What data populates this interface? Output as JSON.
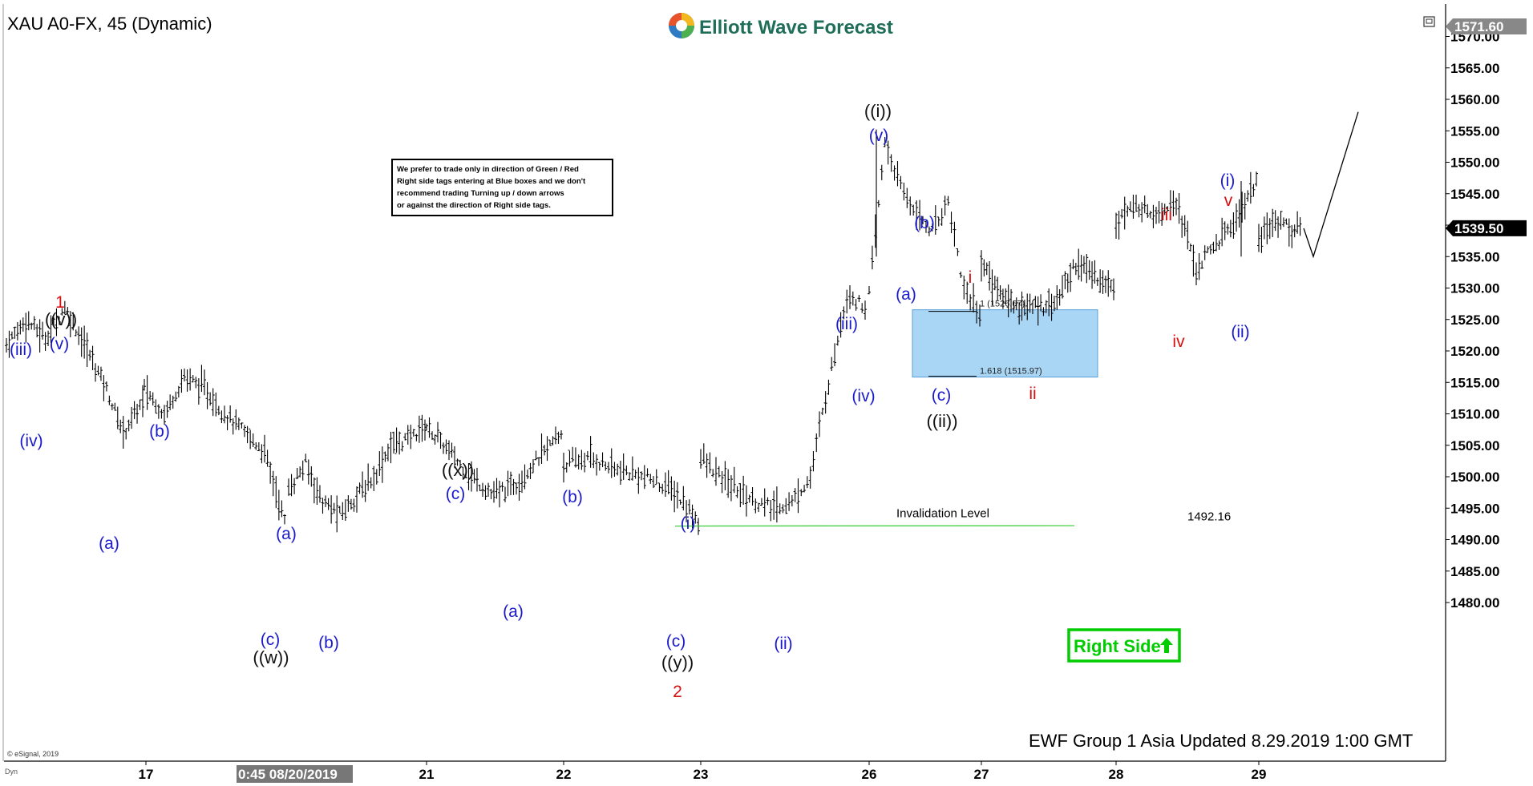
{
  "header": {
    "symbol_title": "XAU A0-FX, 45 (Dynamic)",
    "brand": "Elliott Wave Forecast",
    "logo_icon": "ewf-globe-logo-icon",
    "window_icon": "restore-window-icon"
  },
  "price_axis": {
    "ticks": [
      "1570.00",
      "1565.00",
      "1560.00",
      "1555.00",
      "1550.00",
      "1545.00",
      "1540.00",
      "1535.00",
      "1530.00",
      "1525.00",
      "1520.00",
      "1515.00",
      "1510.00",
      "1505.00",
      "1500.00",
      "1495.00",
      "1490.00",
      "1485.00",
      "1480.00"
    ],
    "top_price_tag": "1571.60",
    "last_price_tag": "1539.50"
  },
  "time_axis": {
    "ticks": [
      "17",
      "21",
      "22",
      "23",
      "26",
      "27",
      "28",
      "29"
    ],
    "cursor_label": "0:45 08/20/2019"
  },
  "notice_box": {
    "lines": [
      "We prefer to trade only in direction of Green / Red",
      "Right side tags entering at Blue boxes and we don't",
      "recommend trading Turning up / down arrows",
      "or against the direction of Right side tags."
    ]
  },
  "invalidation": {
    "label": "Invalidation Level",
    "value": "1492.16"
  },
  "right_side_tag": {
    "label": "Right Side",
    "arrow": "arrow-up-icon",
    "color": "#00cc00"
  },
  "blue_box": {
    "fill": "#a9d6f5",
    "top_label": "1 (1526.67)",
    "bottom_label": "1.618 (1515.97)"
  },
  "footer": {
    "update": "EWF Group 1 Asia Updated 8.29.2019 1:00 GMT",
    "copyright": "© eSignal, 2019",
    "dyn": "Dyn"
  },
  "colors": {
    "blue_label": "#1a1acc",
    "red_label": "#d81010",
    "black_label": "#111111",
    "price_bar": "#000000"
  },
  "chart_data": {
    "type": "ohlc",
    "symbol": "XAU A0-FX",
    "interval": "45",
    "ylim": [
      1476,
      1572
    ],
    "x_ticks": [
      "17",
      "21",
      "22",
      "23",
      "26",
      "27",
      "28",
      "29"
    ],
    "price_path": [
      [
        "08/16",
        1521
      ],
      [
        "08/16",
        1525
      ],
      [
        "08/16",
        1522
      ],
      [
        "08/16",
        1527
      ],
      [
        "08/16",
        1521
      ],
      [
        "08/16",
        1515
      ],
      [
        "08/16",
        1507
      ],
      [
        "08/16",
        1512
      ],
      [
        "08/19",
        1514
      ],
      [
        "08/19",
        1510
      ],
      [
        "08/19",
        1516
      ],
      [
        "08/19",
        1514
      ],
      [
        "08/19",
        1510
      ],
      [
        "08/19",
        1507
      ],
      [
        "08/19",
        1504
      ],
      [
        "08/19",
        1493
      ],
      [
        "08/20",
        1498
      ],
      [
        "08/20",
        1502
      ],
      [
        "08/20",
        1496
      ],
      [
        "08/20",
        1494
      ],
      [
        "08/20",
        1497
      ],
      [
        "08/20",
        1500
      ],
      [
        "08/20",
        1505
      ],
      [
        "08/20",
        1506
      ],
      [
        "08/20",
        1508
      ],
      [
        "08/21",
        1508
      ],
      [
        "08/21",
        1504
      ],
      [
        "08/21",
        1500
      ],
      [
        "08/21",
        1497
      ],
      [
        "08/21",
        1499
      ],
      [
        "08/21",
        1503
      ],
      [
        "08/21",
        1507
      ],
      [
        "08/22",
        1502
      ],
      [
        "08/22",
        1503
      ],
      [
        "08/22",
        1501
      ],
      [
        "08/22",
        1500
      ],
      [
        "08/22",
        1498
      ],
      [
        "08/22",
        1493
      ],
      [
        "08/23",
        1503
      ],
      [
        "08/23",
        1500
      ],
      [
        "08/23",
        1498
      ],
      [
        "08/23",
        1496
      ],
      [
        "08/23",
        1495
      ],
      [
        "08/23",
        1496
      ],
      [
        "08/23",
        1500
      ],
      [
        "08/23",
        1515
      ],
      [
        "08/23",
        1529
      ],
      [
        "08/23",
        1527
      ],
      [
        "08/26",
        1529
      ],
      [
        "08/26",
        1553
      ],
      [
        "08/26",
        1546
      ],
      [
        "08/26",
        1542
      ],
      [
        "08/26",
        1539
      ],
      [
        "08/26",
        1544
      ],
      [
        "08/26",
        1530
      ],
      [
        "08/26",
        1526
      ],
      [
        "08/27",
        1534
      ],
      [
        "08/27",
        1529
      ],
      [
        "08/27",
        1527
      ],
      [
        "08/27",
        1527
      ],
      [
        "08/27",
        1528
      ],
      [
        "08/27",
        1534
      ],
      [
        "08/27",
        1532
      ],
      [
        "08/27",
        1530
      ],
      [
        "08/28",
        1541
      ],
      [
        "08/28",
        1543
      ],
      [
        "08/28",
        1542
      ],
      [
        "08/28",
        1544
      ],
      [
        "08/28",
        1533
      ],
      [
        "08/28",
        1537
      ],
      [
        "08/28",
        1541
      ],
      [
        "08/28",
        1547
      ],
      [
        "08/29",
        1537
      ],
      [
        "08/29",
        1540
      ],
      [
        "08/29",
        1541
      ],
      [
        "08/29",
        1539
      ],
      [
        "08/29",
        1539.5
      ]
    ],
    "projection": [
      [
        "08/29",
        1539.5
      ],
      [
        "08/29",
        1535
      ],
      [
        "08/30",
        1558
      ]
    ],
    "wave_labels": [
      {
        "text": "(iii)",
        "color": "blue",
        "price": 1528
      },
      {
        "text": "(iv)",
        "color": "blue",
        "price": 1520
      },
      {
        "text": "1",
        "color": "red",
        "price": 1533
      },
      {
        "text": "((v))",
        "color": "black",
        "price": 1530
      },
      {
        "text": "(v)",
        "color": "blue",
        "price": 1528
      },
      {
        "text": "(a)",
        "color": "blue",
        "price": 1505
      },
      {
        "text": "(b)",
        "color": "blue",
        "price": 1517
      },
      {
        "text": "(c)",
        "color": "blue",
        "price": 1492
      },
      {
        "text": "((w))",
        "color": "black",
        "price": 1488
      },
      {
        "text": "(a)",
        "color": "blue",
        "price": 1503
      },
      {
        "text": "(b)",
        "color": "blue",
        "price": 1492
      },
      {
        "text": "((x))",
        "color": "black",
        "price": 1508
      },
      {
        "text": "(c)",
        "color": "blue",
        "price": 1508
      },
      {
        "text": "(a)",
        "color": "blue",
        "price": 1496
      },
      {
        "text": "(b)",
        "color": "blue",
        "price": 1507
      },
      {
        "text": "(c)",
        "color": "blue",
        "price": 1492
      },
      {
        "text": "((y))",
        "color": "black",
        "price": 1488
      },
      {
        "text": "2",
        "color": "red",
        "price": 1484
      },
      {
        "text": "(i)",
        "color": "blue",
        "price": 1505
      },
      {
        "text": "(ii)",
        "color": "blue",
        "price": 1492
      },
      {
        "text": "(iii)",
        "color": "blue",
        "price": 1530
      },
      {
        "text": "(iv)",
        "color": "blue",
        "price": 1523
      },
      {
        "text": "((i))",
        "color": "black",
        "price": 1559
      },
      {
        "text": "(v)",
        "color": "blue",
        "price": 1555
      },
      {
        "text": "(b)",
        "color": "blue",
        "price": 1546
      },
      {
        "text": "(a)",
        "color": "blue",
        "price": 1537
      },
      {
        "text": "(c)",
        "color": "blue",
        "price": 1524
      },
      {
        "text": "((ii))",
        "color": "black",
        "price": 1520
      },
      {
        "text": "i",
        "color": "red",
        "price": 1536
      },
      {
        "text": "ii",
        "color": "red",
        "price": 1524
      },
      {
        "text": "iii",
        "color": "red",
        "price": 1547
      },
      {
        "text": "iv",
        "color": "red",
        "price": 1531
      },
      {
        "text": "v",
        "color": "red",
        "price": 1548
      },
      {
        "text": "(i)",
        "color": "blue",
        "price": 1551
      },
      {
        "text": "(ii)",
        "color": "blue",
        "price": 1532
      }
    ],
    "blue_box_range": [
      1515.97,
      1526.67
    ],
    "invalidation_level": 1492.16,
    "last_price": 1539.5
  }
}
